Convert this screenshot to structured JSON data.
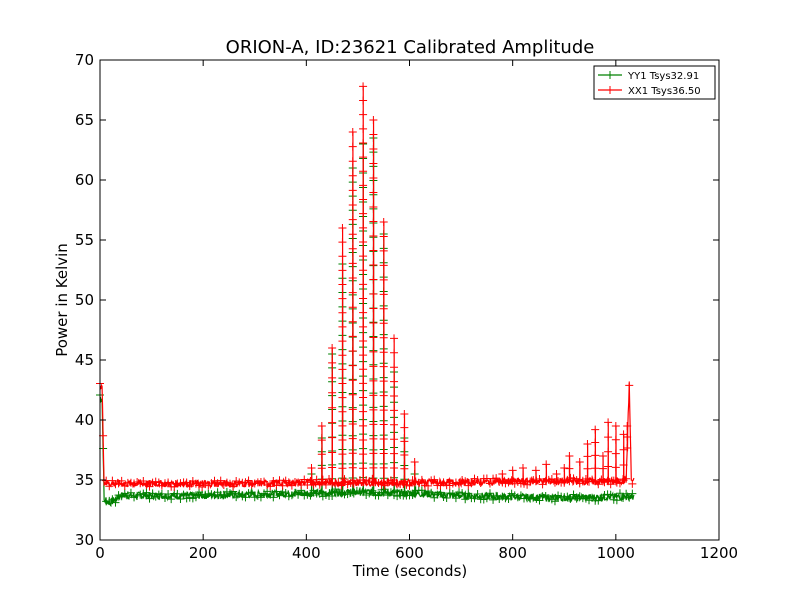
{
  "chart_data": {
    "type": "line",
    "title": "ORION-A, ID:23621 Calibrated Amplitude",
    "xlabel": "Time (seconds)",
    "ylabel": "Power in Kelvin",
    "xlim": [
      0,
      1200
    ],
    "ylim": [
      30,
      70
    ],
    "xticks": [
      0,
      200,
      400,
      600,
      800,
      1000,
      1200
    ],
    "yticks": [
      30,
      35,
      40,
      45,
      50,
      55,
      60,
      65,
      70
    ],
    "grid": false,
    "legend_position": "top-right",
    "series": [
      {
        "name": "YY1 Tsys32.91",
        "color": "#008000",
        "marker": "+",
        "baseline_segments": [
          {
            "x": [
              0,
              4,
              8,
              20,
              40,
              100,
              200,
              300,
              400,
              500,
              600,
              700,
              800,
              900,
              1000,
              1035
            ],
            "y": [
              41.8,
              41.8,
              33.3,
              33.1,
              33.7,
              33.7,
              33.7,
              33.8,
              33.9,
              34.0,
              33.9,
              33.7,
              33.6,
              33.5,
              33.6,
              33.6
            ]
          }
        ],
        "spikes": [
          {
            "x": 410,
            "y": 35.5
          },
          {
            "x": 430,
            "y": 38.5
          },
          {
            "x": 450,
            "y": 45.5
          },
          {
            "x": 470,
            "y": 53.0
          },
          {
            "x": 490,
            "y": 61.0
          },
          {
            "x": 510,
            "y": 63.0
          },
          {
            "x": 530,
            "y": 63.5
          },
          {
            "x": 550,
            "y": 55.5
          },
          {
            "x": 570,
            "y": 44.0
          },
          {
            "x": 590,
            "y": 38.5
          },
          {
            "x": 610,
            "y": 35.5
          }
        ]
      },
      {
        "name": "XX1 Tsys36.50",
        "color": "#ff0000",
        "marker": "+",
        "baseline_segments": [
          {
            "x": [
              0,
              4,
              8,
              20,
              100,
              200,
              300,
              400,
              500,
              600,
              700,
              800,
              900,
              1000,
              1020,
              1026,
              1030,
              1035
            ],
            "y": [
              42.8,
              42.8,
              34.8,
              34.7,
              34.7,
              34.7,
              34.7,
              34.8,
              34.8,
              34.8,
              34.8,
              34.9,
              34.9,
              34.9,
              35.0,
              43.0,
              35.0,
              34.9
            ]
          }
        ],
        "spikes": [
          {
            "x": 410,
            "y": 36.0
          },
          {
            "x": 430,
            "y": 39.5
          },
          {
            "x": 450,
            "y": 46.0
          },
          {
            "x": 470,
            "y": 56.0
          },
          {
            "x": 490,
            "y": 64.0
          },
          {
            "x": 510,
            "y": 67.8
          },
          {
            "x": 530,
            "y": 65.0
          },
          {
            "x": 550,
            "y": 56.5
          },
          {
            "x": 570,
            "y": 46.8
          },
          {
            "x": 590,
            "y": 40.5
          },
          {
            "x": 610,
            "y": 36.5
          },
          {
            "x": 780,
            "y": 35.5
          },
          {
            "x": 800,
            "y": 35.8
          },
          {
            "x": 820,
            "y": 36.0
          },
          {
            "x": 845,
            "y": 35.8
          },
          {
            "x": 865,
            "y": 36.3
          },
          {
            "x": 885,
            "y": 35.5
          },
          {
            "x": 900,
            "y": 36.0
          },
          {
            "x": 910,
            "y": 37.0
          },
          {
            "x": 930,
            "y": 36.5
          },
          {
            "x": 945,
            "y": 38.0
          },
          {
            "x": 960,
            "y": 39.2
          },
          {
            "x": 975,
            "y": 37.0
          },
          {
            "x": 985,
            "y": 39.8
          },
          {
            "x": 1000,
            "y": 39.5
          },
          {
            "x": 1015,
            "y": 38.8
          },
          {
            "x": 1022,
            "y": 39.5
          }
        ]
      }
    ]
  }
}
